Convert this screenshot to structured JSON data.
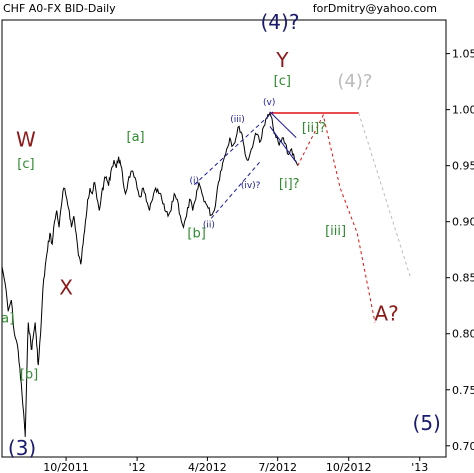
{
  "header": {
    "instrument": "CHF A0-FX BID-Daily",
    "author": "forDmitry@yahoo.com"
  },
  "colors": {
    "price": "#000000",
    "wave_major": "#1a1a6e",
    "wave_abc_major": "#8b1a1a",
    "wave_minor": "#2e8b2e",
    "wave_minute": "#1a1a9e",
    "projection_red": "#e01010",
    "projection_gray": "#bbbbbb",
    "resistance": "#e01010"
  },
  "chart_data": {
    "type": "line",
    "title": "",
    "xlabel": "",
    "ylabel": "",
    "ylim": [
      0.69,
      1.08
    ],
    "y_ticks": [
      "1.05",
      "1.00",
      "0.950",
      "0.900",
      "0.850",
      "0.800",
      "0.750",
      "0.700"
    ],
    "y_tick_values": [
      1.05,
      1.0,
      0.95,
      0.9,
      0.85,
      0.8,
      0.75,
      0.7
    ],
    "x_ticks": [
      "10/2011",
      "'12",
      "4/2012",
      "7/2012",
      "10/2012",
      "'13"
    ],
    "x_tick_dates": [
      "2011-10-01",
      "2012-01-01",
      "2012-04-01",
      "2012-07-01",
      "2012-10-01",
      "2013-01-01"
    ],
    "xlim": [
      "2011-07-10",
      "2013-02-04"
    ],
    "series": [
      {
        "points": [
          [
            "2011-07-10",
            0.86
          ],
          [
            "2011-07-14",
            0.845
          ],
          [
            "2011-07-18",
            0.82
          ],
          [
            "2011-07-22",
            0.83
          ],
          [
            "2011-07-26",
            0.8
          ],
          [
            "2011-07-30",
            0.79
          ],
          [
            "2011-08-02",
            0.77
          ],
          [
            "2011-08-05",
            0.745
          ],
          [
            "2011-08-08",
            0.72
          ],
          [
            "2011-08-09",
            0.708
          ],
          [
            "2011-08-11",
            0.76
          ],
          [
            "2011-08-13",
            0.81
          ],
          [
            "2011-08-15",
            0.8
          ],
          [
            "2011-08-17",
            0.786
          ],
          [
            "2011-08-19",
            0.795
          ],
          [
            "2011-08-22",
            0.81
          ],
          [
            "2011-08-24",
            0.79
          ],
          [
            "2011-08-26",
            0.772
          ],
          [
            "2011-08-29",
            0.8
          ],
          [
            "2011-09-01",
            0.84
          ],
          [
            "2011-09-04",
            0.86
          ],
          [
            "2011-09-07",
            0.875
          ],
          [
            "2011-09-10",
            0.89
          ],
          [
            "2011-09-13",
            0.88
          ],
          [
            "2011-09-16",
            0.9
          ],
          [
            "2011-09-19",
            0.91
          ],
          [
            "2011-09-22",
            0.895
          ],
          [
            "2011-09-25",
            0.915
          ],
          [
            "2011-09-28",
            0.93
          ],
          [
            "2011-10-02",
            0.92
          ],
          [
            "2011-10-05",
            0.91
          ],
          [
            "2011-10-08",
            0.895
          ],
          [
            "2011-10-11",
            0.905
          ],
          [
            "2011-10-14",
            0.89
          ],
          [
            "2011-10-17",
            0.87
          ],
          [
            "2011-10-20",
            0.862
          ],
          [
            "2011-10-23",
            0.88
          ],
          [
            "2011-10-26",
            0.9
          ],
          [
            "2011-10-29",
            0.92
          ],
          [
            "2011-11-01",
            0.93
          ],
          [
            "2011-11-04",
            0.925
          ],
          [
            "2011-11-07",
            0.935
          ],
          [
            "2011-11-10",
            0.92
          ],
          [
            "2011-11-13",
            0.91
          ],
          [
            "2011-11-16",
            0.925
          ],
          [
            "2011-11-19",
            0.935
          ],
          [
            "2011-11-22",
            0.94
          ],
          [
            "2011-11-25",
            0.932
          ],
          [
            "2011-11-28",
            0.945
          ],
          [
            "2011-12-02",
            0.955
          ],
          [
            "2011-12-05",
            0.948
          ],
          [
            "2011-12-08",
            0.958
          ],
          [
            "2011-12-11",
            0.95
          ],
          [
            "2011-12-14",
            0.935
          ],
          [
            "2011-12-17",
            0.925
          ],
          [
            "2011-12-20",
            0.935
          ],
          [
            "2011-12-24",
            0.945
          ],
          [
            "2011-12-28",
            0.94
          ],
          [
            "2012-01-01",
            0.93
          ],
          [
            "2012-01-05",
            0.922
          ],
          [
            "2012-01-09",
            0.93
          ],
          [
            "2012-01-13",
            0.918
          ],
          [
            "2012-01-17",
            0.91
          ],
          [
            "2012-01-21",
            0.92
          ],
          [
            "2012-01-25",
            0.93
          ],
          [
            "2012-01-29",
            0.925
          ],
          [
            "2012-02-02",
            0.92
          ],
          [
            "2012-02-06",
            0.91
          ],
          [
            "2012-02-10",
            0.905
          ],
          [
            "2012-02-14",
            0.91
          ],
          [
            "2012-02-18",
            0.925
          ],
          [
            "2012-02-22",
            0.92
          ],
          [
            "2012-02-26",
            0.905
          ],
          [
            "2012-03-01",
            0.895
          ],
          [
            "2012-03-05",
            0.905
          ],
          [
            "2012-03-09",
            0.92
          ],
          [
            "2012-03-13",
            0.91
          ],
          [
            "2012-03-17",
            0.92
          ],
          [
            "2012-03-21",
            0.935
          ],
          [
            "2012-03-25",
            0.925
          ],
          [
            "2012-03-29",
            0.918
          ],
          [
            "2012-04-02",
            0.912
          ],
          [
            "2012-04-06",
            0.906
          ],
          [
            "2012-04-10",
            0.91
          ],
          [
            "2012-04-14",
            0.93
          ],
          [
            "2012-04-18",
            0.945
          ],
          [
            "2012-04-22",
            0.955
          ],
          [
            "2012-04-26",
            0.965
          ],
          [
            "2012-04-30",
            0.975
          ],
          [
            "2012-05-04",
            0.968
          ],
          [
            "2012-05-08",
            0.975
          ],
          [
            "2012-05-12",
            0.985
          ],
          [
            "2012-05-16",
            0.978
          ],
          [
            "2012-05-20",
            0.96
          ],
          [
            "2012-05-24",
            0.955
          ],
          [
            "2012-05-28",
            0.965
          ],
          [
            "2012-06-01",
            0.975
          ],
          [
            "2012-06-05",
            0.978
          ],
          [
            "2012-06-09",
            0.972
          ],
          [
            "2012-06-13",
            0.985
          ],
          [
            "2012-06-17",
            0.992
          ],
          [
            "2012-06-21",
            0.997
          ],
          [
            "2012-06-25",
            0.985
          ],
          [
            "2012-06-29",
            0.975
          ],
          [
            "2012-07-03",
            0.968
          ],
          [
            "2012-07-07",
            0.975
          ],
          [
            "2012-07-11",
            0.97
          ],
          [
            "2012-07-15",
            0.96
          ],
          [
            "2012-07-19",
            0.965
          ],
          [
            "2012-07-23",
            0.955
          ],
          [
            "2012-07-27",
            0.95
          ]
        ]
      }
    ],
    "annotations": [
      {
        "text": "(3)",
        "x": "2011-08-05",
        "y": 0.692,
        "group": "major"
      },
      {
        "text": "(4)?",
        "x": "2012-07-04",
        "y": 1.072,
        "group": "major"
      },
      {
        "text": "(5)",
        "x": "2013-01-10",
        "y": 0.714,
        "group": "major"
      },
      {
        "text": "W",
        "x": "2011-08-10",
        "y": 0.967,
        "group": "abc_major"
      },
      {
        "text": "X",
        "x": "2011-10-01",
        "y": 0.835,
        "group": "abc_major"
      },
      {
        "text": "Y",
        "x": "2012-07-07",
        "y": 1.038,
        "group": "abc_major"
      },
      {
        "text": "A?",
        "x": "2012-11-19",
        "y": 0.812,
        "group": "abc_major"
      },
      {
        "text": "[c]",
        "x": "2011-08-10",
        "y": 0.948,
        "group": "minor"
      },
      {
        "text": "[a]",
        "x": "2011-07-14",
        "y": 0.81,
        "group": "minor"
      },
      {
        "text": "[b]",
        "x": "2011-08-14",
        "y": 0.76,
        "group": "minor"
      },
      {
        "text": "[a]",
        "x": "2011-12-30",
        "y": 0.972,
        "group": "minor"
      },
      {
        "text": "[b]",
        "x": "2012-03-18",
        "y": 0.886,
        "group": "minor"
      },
      {
        "text": "[c]",
        "x": "2012-07-07",
        "y": 1.022,
        "group": "minor"
      },
      {
        "text": "[ii]?",
        "x": "2012-08-17",
        "y": 0.98,
        "group": "minor"
      },
      {
        "text": "[i]?",
        "x": "2012-07-16",
        "y": 0.93,
        "group": "minor"
      },
      {
        "text": "[iii]",
        "x": "2012-09-14",
        "y": 0.888,
        "group": "minor"
      },
      {
        "text": "(4)?",
        "x": "2012-10-09",
        "y": 1.02,
        "group": "projected"
      },
      {
        "text": "(v)",
        "x": "2012-06-20",
        "y": 1.004,
        "group": "minute"
      },
      {
        "text": "(iii)",
        "x": "2012-05-10",
        "y": 0.989,
        "group": "minute"
      },
      {
        "text": "(i)",
        "x": "2012-03-15",
        "y": 0.934,
        "group": "minute"
      },
      {
        "text": "(ii)",
        "x": "2012-04-03",
        "y": 0.895,
        "group": "minute"
      },
      {
        "text": "(iv)?",
        "x": "2012-05-27",
        "y": 0.93,
        "group": "minute"
      }
    ],
    "resistance_level": {
      "y": 0.997,
      "from": "2012-06-21",
      "to": "2012-10-14"
    },
    "minute_channel": [
      {
        "from": [
          "2012-03-15",
          0.933
        ],
        "to": [
          "2012-06-25",
          0.998
        ]
      },
      {
        "from": [
          "2012-04-06",
          0.903
        ],
        "to": [
          "2012-06-10",
          0.955
        ]
      }
    ],
    "wedge_lines": [
      {
        "from": [
          "2012-06-21",
          0.998
        ],
        "to": [
          "2012-07-25",
          0.975
        ]
      },
      {
        "from": [
          "2012-06-21",
          0.985
        ],
        "to": [
          "2012-07-25",
          0.953
        ]
      }
    ],
    "projection_red": [
      [
        "2012-07-27",
        0.95
      ],
      [
        "2012-08-29",
        0.995
      ],
      [
        "2012-09-20",
        0.93
      ],
      [
        "2012-10-12",
        0.89
      ],
      [
        "2012-11-04",
        0.81
      ]
    ],
    "projection_gray": [
      [
        "2012-10-14",
        0.997
      ],
      [
        "2012-12-20",
        0.85
      ]
    ]
  }
}
